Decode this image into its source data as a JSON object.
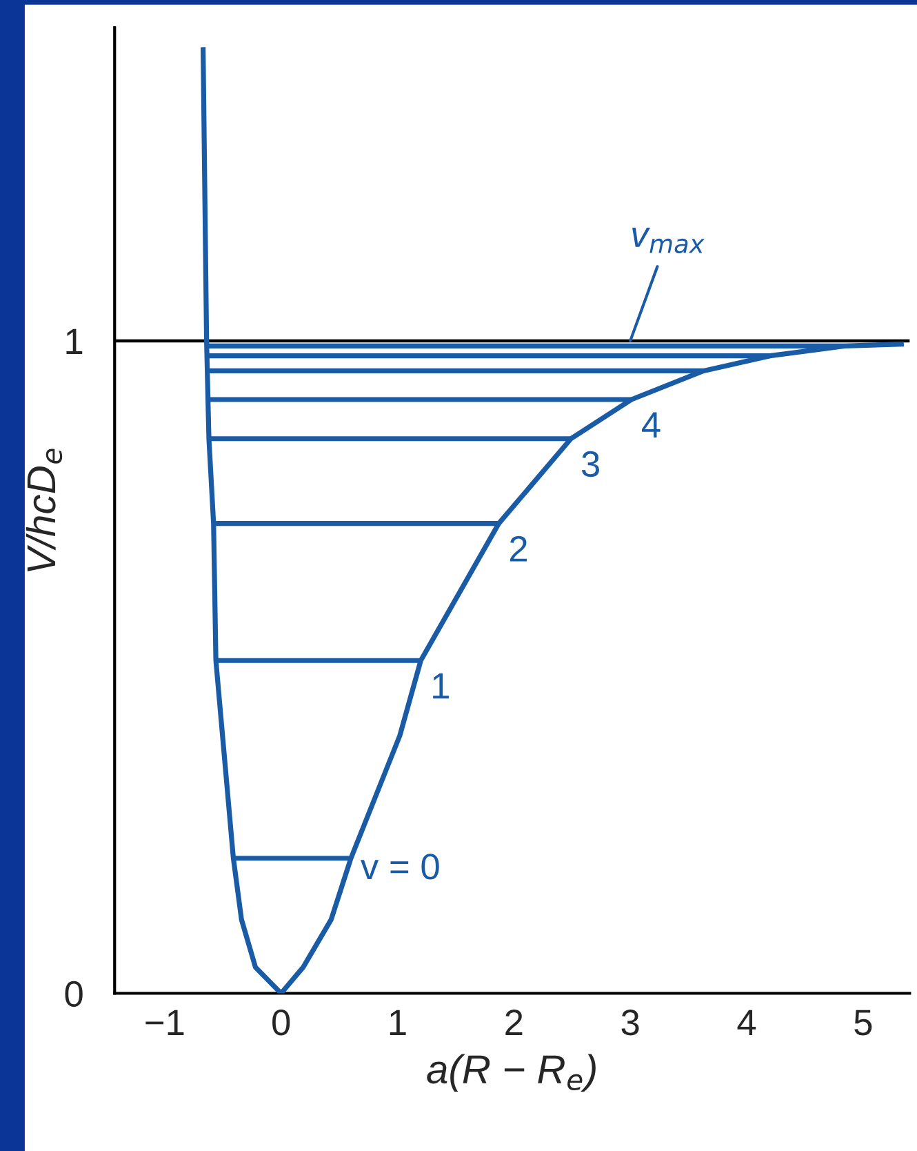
{
  "chart_data": {
    "type": "line",
    "xlabel": "a(R − R$_{e}$)",
    "ylabel": "V/hcD$_{e}$",
    "xlim": [
      -1.43,
      5.4
    ],
    "ylim": [
      0,
      1.48
    ],
    "xticks": [
      -1,
      0,
      1,
      2,
      3,
      4,
      5
    ],
    "yticks": [
      0,
      1
    ],
    "grid": false,
    "legend": false,
    "marker": "none",
    "line_style": "solid",
    "series": [
      {
        "color": "#1a5ba6",
        "x": [
          -0.67,
          -0.64,
          -0.62,
          -0.58,
          -0.56,
          -0.41,
          -0.34,
          -0.22,
          0,
          0.19,
          0.43,
          0.6,
          1.02,
          1.2,
          1.87,
          2.49,
          3.01,
          3.63,
          4.2,
          4.84,
          5.35
        ],
        "values": [
          1.45,
          1.0,
          0.85,
          0.72,
          0.51,
          0.207,
          0.113,
          0.04,
          0,
          0.04,
          0.113,
          0.207,
          0.395,
          0.51,
          0.72,
          0.85,
          0.91,
          0.954,
          0.977,
          0.992,
          0.995
        ]
      },
      {
        "color": "#1a5ba6",
        "x": [
          -0.41,
          0.6
        ],
        "values": [
          0.207,
          0.207
        ]
      },
      {
        "color": "#1a5ba6",
        "x": [
          -0.56,
          1.2
        ],
        "values": [
          0.51,
          0.51
        ]
      },
      {
        "color": "#1a5ba6",
        "x": [
          -0.58,
          1.87
        ],
        "values": [
          0.72,
          0.72
        ]
      },
      {
        "color": "#1a5ba6",
        "x": [
          -0.62,
          2.49
        ],
        "values": [
          0.85,
          0.85
        ]
      },
      {
        "color": "#1a5ba6",
        "x": [
          -0.62,
          3.01
        ],
        "values": [
          0.91,
          0.91
        ]
      },
      {
        "color": "#1a5ba6",
        "x": [
          -0.63,
          3.63
        ],
        "values": [
          0.954,
          0.954
        ]
      },
      {
        "color": "#1a5ba6",
        "x": [
          -0.63,
          4.2
        ],
        "values": [
          0.977,
          0.977
        ]
      },
      {
        "color": "#1a5ba6",
        "x": [
          -0.64,
          4.84
        ],
        "values": [
          0.992,
          0.992
        ]
      }
    ],
    "ref_lines": [
      {
        "axis": "y",
        "value": 1,
        "color": "#000000"
      }
    ],
    "annotations": [
      {
        "text": "v = 0",
        "x": 0.6,
        "y": 0.207
      },
      {
        "text": "1",
        "x": 1.2,
        "y": 0.51
      },
      {
        "text": "2",
        "x": 1.87,
        "y": 0.72
      },
      {
        "text": "3",
        "x": 2.49,
        "y": 0.85
      },
      {
        "text": "4",
        "x": 3.01,
        "y": 0.91
      },
      {
        "text": "v$_{max}$",
        "x": 3.0,
        "y": 1.0
      }
    ]
  }
}
